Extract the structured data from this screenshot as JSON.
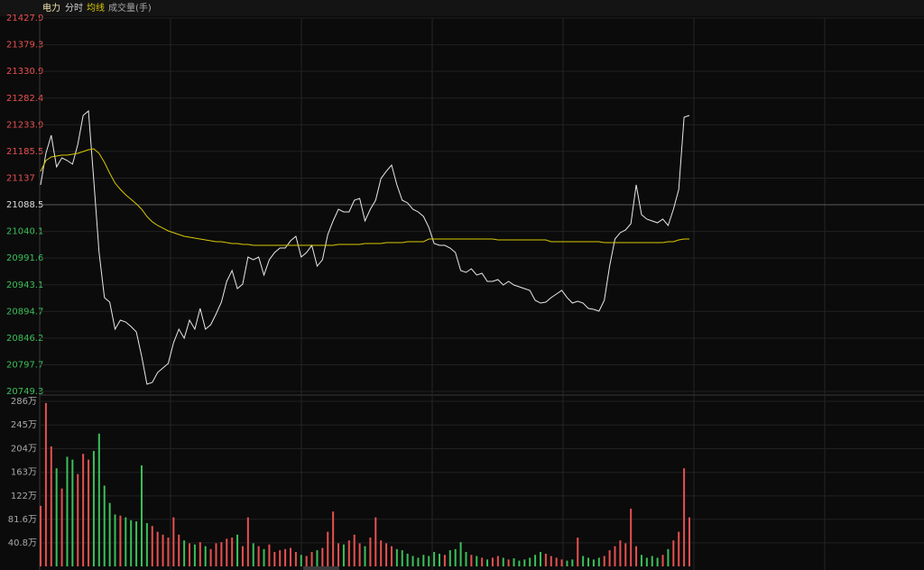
{
  "chart_data": [
    {
      "type": "line",
      "title": "电力",
      "ylim": [
        20749.3,
        21427.9
      ],
      "yticks": [
        20749.3,
        20797.7,
        20846.2,
        20894.7,
        20943.1,
        20991.6,
        21040.1,
        21088.5,
        21137.0,
        21185.5,
        21233.9,
        21282.4,
        21330.9,
        21379.3,
        21427.9
      ],
      "prev_close": 21088.5,
      "grid": true,
      "up_color": "#e85050",
      "down_color": "#3cbf5a",
      "flat_color": "#dddddd",
      "series": [
        {
          "name": "分时",
          "color": "#e8e8e8",
          "values": [
            21124.7,
            21182.0,
            21214.8,
            21157.4,
            21173.8,
            21168.9,
            21162.4,
            21198.4,
            21250.9,
            21259.1,
            21132.9,
            21001.7,
            20919.8,
            20911.6,
            20862.4,
            20878.8,
            20875.5,
            20867.3,
            20857.5,
            20813.2,
            20762.4,
            20765.7,
            20783.7,
            20791.9,
            20800.1,
            20837.8,
            20862.4,
            20846.0,
            20878.8,
            20862.4,
            20900.1,
            20862.4,
            20870.6,
            20890.3,
            20911.6,
            20949.3,
            20969.0,
            20936.2,
            20944.4,
            20993.5,
            20988.6,
            20993.5,
            20960.8,
            20988.6,
            21001.7,
            21009.9,
            21009.9,
            21023.0,
            21031.2,
            20993.5,
            21001.7,
            21014.8,
            20977.1,
            20988.6,
            21034.5,
            21059.1,
            21080.4,
            21075.5,
            21075.5,
            21096.8,
            21100.1,
            21059.1,
            21080.4,
            21096.8,
            21136.1,
            21149.3,
            21160.7,
            21124.7,
            21096.8,
            21091.9,
            21080.4,
            21075.5,
            21067.3,
            21047.6,
            21018.1,
            21014.8,
            21014.8,
            21009.9,
            21001.7,
            20969.0,
            20965.7,
            20972.2,
            20960.8,
            20964.0,
            20949.3,
            20949.3,
            20952.6,
            20942.7,
            20949.3,
            20942.7,
            20939.4,
            20936.2,
            20932.9,
            20914.9,
            20909.9,
            20911.6,
            20919.8,
            20926.3,
            20932.9,
            20919.8,
            20909.9,
            20913.2,
            20909.9,
            20900.1,
            20898.5,
            20895.2,
            20914.9,
            20977.1,
            21026.3,
            21037.8,
            21042.7,
            21054.2,
            21124.7,
            21070.6,
            21062.4,
            21059.1,
            21055.8,
            21062.4,
            21050.9,
            21080.4,
            21116.5,
            21247.6,
            21250.9
          ]
        },
        {
          "name": "均线",
          "color": "#d8c800",
          "values": [
            21149.3,
            21168.9,
            21175.5,
            21177.1,
            21178.8,
            21178.8,
            21180.4,
            21182.0,
            21185.3,
            21188.6,
            21190.2,
            21182.0,
            21165.6,
            21146.0,
            21127.9,
            21116.5,
            21106.6,
            21098.4,
            21090.2,
            21080.4,
            21067.3,
            21057.5,
            21050.9,
            21046.0,
            21041.1,
            21037.8,
            21034.5,
            21031.2,
            21029.6,
            21028.0,
            21026.3,
            21024.7,
            21023.0,
            21021.4,
            21021.4,
            21019.8,
            21018.1,
            21018.1,
            21016.5,
            21016.5,
            21014.8,
            21014.8,
            21014.8,
            21014.8,
            21014.8,
            21014.8,
            21014.8,
            21014.8,
            21014.8,
            21014.8,
            21014.8,
            21014.8,
            21014.8,
            21014.8,
            21014.8,
            21014.8,
            21016.5,
            21016.5,
            21016.5,
            21016.5,
            21016.5,
            21018.1,
            21018.1,
            21018.1,
            21018.1,
            21019.8,
            21019.8,
            21019.8,
            21019.8,
            21021.4,
            21021.4,
            21021.4,
            21021.4,
            21026.3,
            21026.3,
            21026.3,
            21026.3,
            21026.3,
            21026.3,
            21026.3,
            21026.3,
            21026.3,
            21026.3,
            21026.3,
            21026.3,
            21026.3,
            21024.7,
            21024.7,
            21024.7,
            21024.7,
            21024.7,
            21024.7,
            21024.7,
            21024.7,
            21024.7,
            21024.7,
            21021.4,
            21021.4,
            21021.4,
            21021.4,
            21021.4,
            21021.4,
            21021.4,
            21021.4,
            21021.4,
            21021.4,
            21019.8,
            21019.8,
            21019.8,
            21019.8,
            21019.8,
            21019.8,
            21019.8,
            21019.8,
            21019.8,
            21019.8,
            21019.8,
            21019.8,
            21021.4,
            21021.4,
            21024.7,
            21026.3,
            21026.3
          ]
        }
      ]
    },
    {
      "type": "bar",
      "title": "成交量(手)",
      "ylim": [
        0,
        286
      ],
      "yticks": [
        {
          "value": 40.8,
          "label": "40.8万"
        },
        {
          "value": 81.6,
          "label": "81.6万"
        },
        {
          "value": 122,
          "label": "122万"
        },
        {
          "value": 163,
          "label": "163万"
        },
        {
          "value": 204,
          "label": "204万"
        },
        {
          "value": 245,
          "label": "245万"
        },
        {
          "value": 286,
          "label": "286万"
        }
      ],
      "values": [
        105,
        283,
        208,
        170,
        135,
        190,
        185,
        160,
        195,
        185,
        200,
        230,
        140,
        110,
        90,
        88,
        85,
        80,
        78,
        175,
        75,
        70,
        60,
        55,
        50,
        85,
        55,
        45,
        40,
        38,
        42,
        35,
        30,
        40,
        42,
        48,
        50,
        55,
        35,
        85,
        40,
        35,
        30,
        38,
        25,
        28,
        30,
        32,
        25,
        20,
        18,
        25,
        28,
        32,
        60,
        95,
        40,
        38,
        45,
        55,
        40,
        35,
        50,
        85,
        45,
        40,
        35,
        30,
        28,
        22,
        18,
        15,
        20,
        18,
        25,
        22,
        20,
        28,
        30,
        42,
        25,
        20,
        18,
        15,
        12,
        15,
        18,
        15,
        12,
        14,
        10,
        12,
        15,
        20,
        25,
        22,
        18,
        15,
        12,
        10,
        12,
        50,
        18,
        15,
        12,
        15,
        18,
        28,
        35,
        45,
        40,
        100,
        35,
        20,
        15,
        18,
        15,
        20,
        30,
        45,
        60,
        170,
        85
      ]
    }
  ]
}
